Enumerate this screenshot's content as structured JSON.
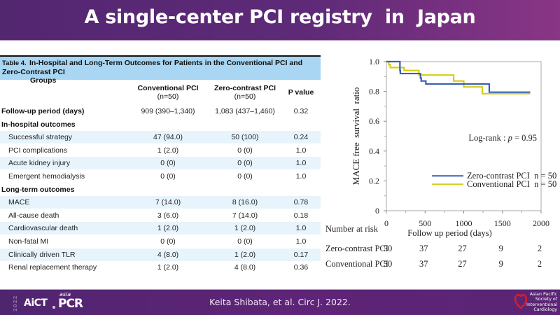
{
  "slide": {
    "title": "A single-center PCI registry  in  Japan",
    "citation": "Keita Shibata, et al. Circ J. 2022."
  },
  "footer": {
    "year": "2022",
    "logo_aict": "AiCT",
    "logo_asia": "asia",
    "logo_pcr": "PCR",
    "society_lines": [
      "Asian Pacific",
      "Society of",
      "Interventional",
      "Cardiology"
    ]
  },
  "table": {
    "caption_label": "Table 4.",
    "caption_line1": "In-Hospital and Long-Term Outcomes for Patients in the Conventional PCI and Zero-Contrast PCI",
    "caption_line2": "Groups",
    "columns": [
      {
        "line1": "Conventional PCI",
        "line2": "(n=50)"
      },
      {
        "line1": "Zero-contrast PCI",
        "line2": "(n=50)"
      },
      {
        "line1": "P value",
        "line2": ""
      }
    ],
    "rows": [
      {
        "label": "Follow-up period (days)",
        "section": true,
        "conventional": "909 (390–1,340)",
        "zero_contrast": "1,083 (437–1,460)",
        "p": "0.32",
        "shade": false
      },
      {
        "label": "In-hospital outcomes",
        "section": true,
        "conventional": "",
        "zero_contrast": "",
        "p": "",
        "shade": false
      },
      {
        "label": "Successful strategy",
        "section": false,
        "conventional": "47 (94.0)",
        "zero_contrast": "50 (100)",
        "p": "0.24",
        "shade": true
      },
      {
        "label": "PCI complications",
        "section": false,
        "conventional": "1 (2.0)",
        "zero_contrast": "0 (0)",
        "p": "1.0",
        "shade": false
      },
      {
        "label": "Acute kidney injury",
        "section": false,
        "conventional": "0 (0)",
        "zero_contrast": "0 (0)",
        "p": "1.0",
        "shade": true
      },
      {
        "label": "Emergent hemodialysis",
        "section": false,
        "conventional": "0 (0)",
        "zero_contrast": "0 (0)",
        "p": "1.0",
        "shade": false
      },
      {
        "label": "Long-term outcomes",
        "section": true,
        "conventional": "",
        "zero_contrast": "",
        "p": "",
        "shade": false
      },
      {
        "label": "MACE",
        "section": false,
        "conventional": "7 (14.0)",
        "zero_contrast": "8 (16.0)",
        "p": "0.78",
        "shade": true
      },
      {
        "label": "All-cause death",
        "section": false,
        "conventional": "3 (6.0)",
        "zero_contrast": "7 (14.0)",
        "p": "0.18",
        "shade": false
      },
      {
        "label": "Cardiovascular death",
        "section": false,
        "conventional": "1 (2.0)",
        "zero_contrast": "1 (2.0)",
        "p": "1.0",
        "shade": true
      },
      {
        "label": "Non-fatal MI",
        "section": false,
        "conventional": "0 (0)",
        "zero_contrast": "0 (0)",
        "p": "1.0",
        "shade": false
      },
      {
        "label": "Clinically driven TLR",
        "section": false,
        "conventional": "4 (8.0)",
        "zero_contrast": "1 (2.0)",
        "p": "0.17",
        "shade": true
      },
      {
        "label": "Renal replacement therapy",
        "section": false,
        "conventional": "1 (2.0)",
        "zero_contrast": "4 (8.0)",
        "p": "0.36",
        "shade": false
      }
    ]
  },
  "chart_data": {
    "type": "line",
    "subtype": "kaplan-meier step",
    "title": "",
    "xlabel": "Follow up period (days)",
    "ylabel": "MACE free  survival  ratio",
    "xlim": [
      0,
      2000
    ],
    "ylim": [
      0,
      1.0
    ],
    "x_ticks": [
      "0",
      "500",
      "1000",
      "1500",
      "2000"
    ],
    "y_ticks": [
      "0",
      "0.2",
      "0.4",
      "0.6",
      "0.8",
      "1.0"
    ],
    "annotation": "Log-rank : p = 0.95",
    "legend_position": "bottom-right",
    "series": [
      {
        "name": "Zero-contrast PCI  n = 50",
        "color": "#3a5fb0",
        "x": [
          0,
          170,
          175,
          180,
          430,
          440,
          450,
          510,
          1330,
          1330,
          1860
        ],
        "y": [
          1.0,
          1.0,
          0.94,
          0.92,
          0.92,
          0.89,
          0.87,
          0.85,
          0.85,
          0.795,
          0.795
        ]
      },
      {
        "name": "Conventional PCI  n = 50",
        "color": "#d4cc1a",
        "x": [
          0,
          30,
          50,
          230,
          420,
          870,
          1000,
          1240,
          1860
        ],
        "y": [
          1.0,
          0.98,
          0.96,
          0.94,
          0.91,
          0.87,
          0.83,
          0.785,
          0.785
        ]
      }
    ],
    "number_at_risk": {
      "label": "Number at risk",
      "rows": [
        {
          "group": "Zero-contrast PCI",
          "values": [
            "50",
            "37",
            "27",
            "9",
            "2"
          ]
        },
        {
          "group": "Conventional PCI",
          "values": [
            "50",
            "37",
            "27",
            "9",
            "2"
          ]
        }
      ]
    }
  }
}
